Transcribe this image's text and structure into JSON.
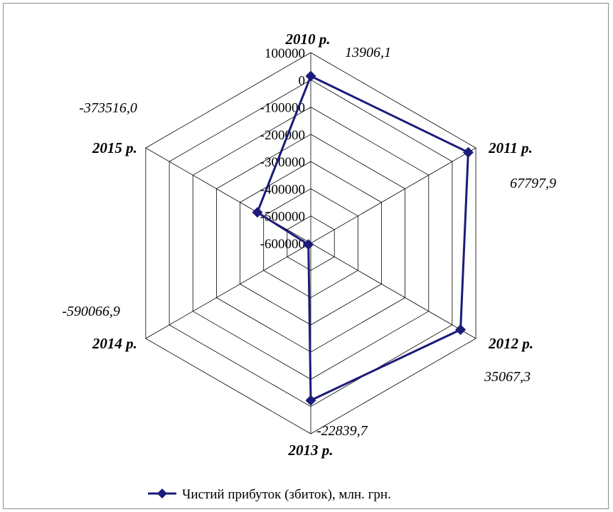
{
  "chart_data": {
    "type": "radar",
    "title": "",
    "categories": [
      "2010 р.",
      "2011 р.",
      "2012 р.",
      "2013 р.",
      "2014 р.",
      "2015 р."
    ],
    "series": [
      {
        "name": "Чистий прибуток (збиток), млн. грн.",
        "values": [
          13906.1,
          67797.9,
          35067.3,
          -22839.7,
          -590066.9,
          -373516.0
        ],
        "data_labels": [
          "13906,1",
          "67797,9",
          "35067,3",
          "-22839,7",
          "-590066,9",
          "-373516,0"
        ],
        "color": "#1b1b7a",
        "marker": "diamond"
      }
    ],
    "axis": {
      "min": -600000,
      "max": 100000,
      "tick_labels": [
        "-600000",
        "-500000",
        "-400000",
        "-300000",
        "-200000",
        "-100000",
        "0",
        "100000"
      ]
    },
    "grid": true,
    "legend": "bottom"
  }
}
